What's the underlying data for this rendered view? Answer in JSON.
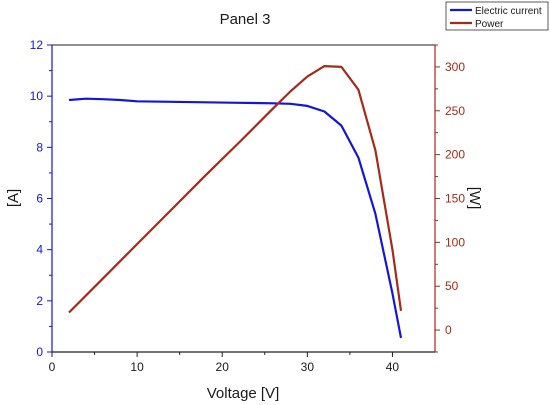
{
  "chart_data": {
    "type": "line",
    "title": "Panel 3",
    "xlabel": "Voltage [V]",
    "ylabel_left": "[A]",
    "ylabel_right": "[W]",
    "xlim": [
      0,
      45
    ],
    "ylim_left": [
      0,
      12
    ],
    "ylim_right": [
      -25,
      325
    ],
    "x_ticks": [
      0,
      10,
      20,
      30,
      40
    ],
    "y_left_ticks": [
      0,
      2,
      4,
      6,
      8,
      10,
      12
    ],
    "y_right_ticks": [
      0,
      50,
      100,
      150,
      200,
      250,
      300
    ],
    "grid": false,
    "legend_position": "top-right",
    "series": [
      {
        "name": "Electric current",
        "axis": "left",
        "color": "#1515d6",
        "x": [
          2,
          4,
          6,
          8,
          10,
          14,
          18,
          22,
          26,
          28,
          30,
          32,
          34,
          36,
          38,
          40,
          41
        ],
        "y": [
          9.85,
          9.9,
          9.88,
          9.85,
          9.8,
          9.78,
          9.76,
          9.74,
          9.72,
          9.7,
          9.62,
          9.4,
          8.85,
          7.6,
          5.4,
          2.3,
          0.55
        ]
      },
      {
        "name": "Power",
        "axis": "right",
        "color": "#a52a1a",
        "x": [
          2,
          6,
          10,
          14,
          18,
          22,
          26,
          28,
          30,
          32,
          34,
          36,
          38,
          40,
          41
        ],
        "y": [
          20,
          59,
          98,
          137,
          176,
          214,
          253,
          272,
          289,
          301,
          300,
          274,
          205,
          92,
          22
        ]
      }
    ]
  }
}
